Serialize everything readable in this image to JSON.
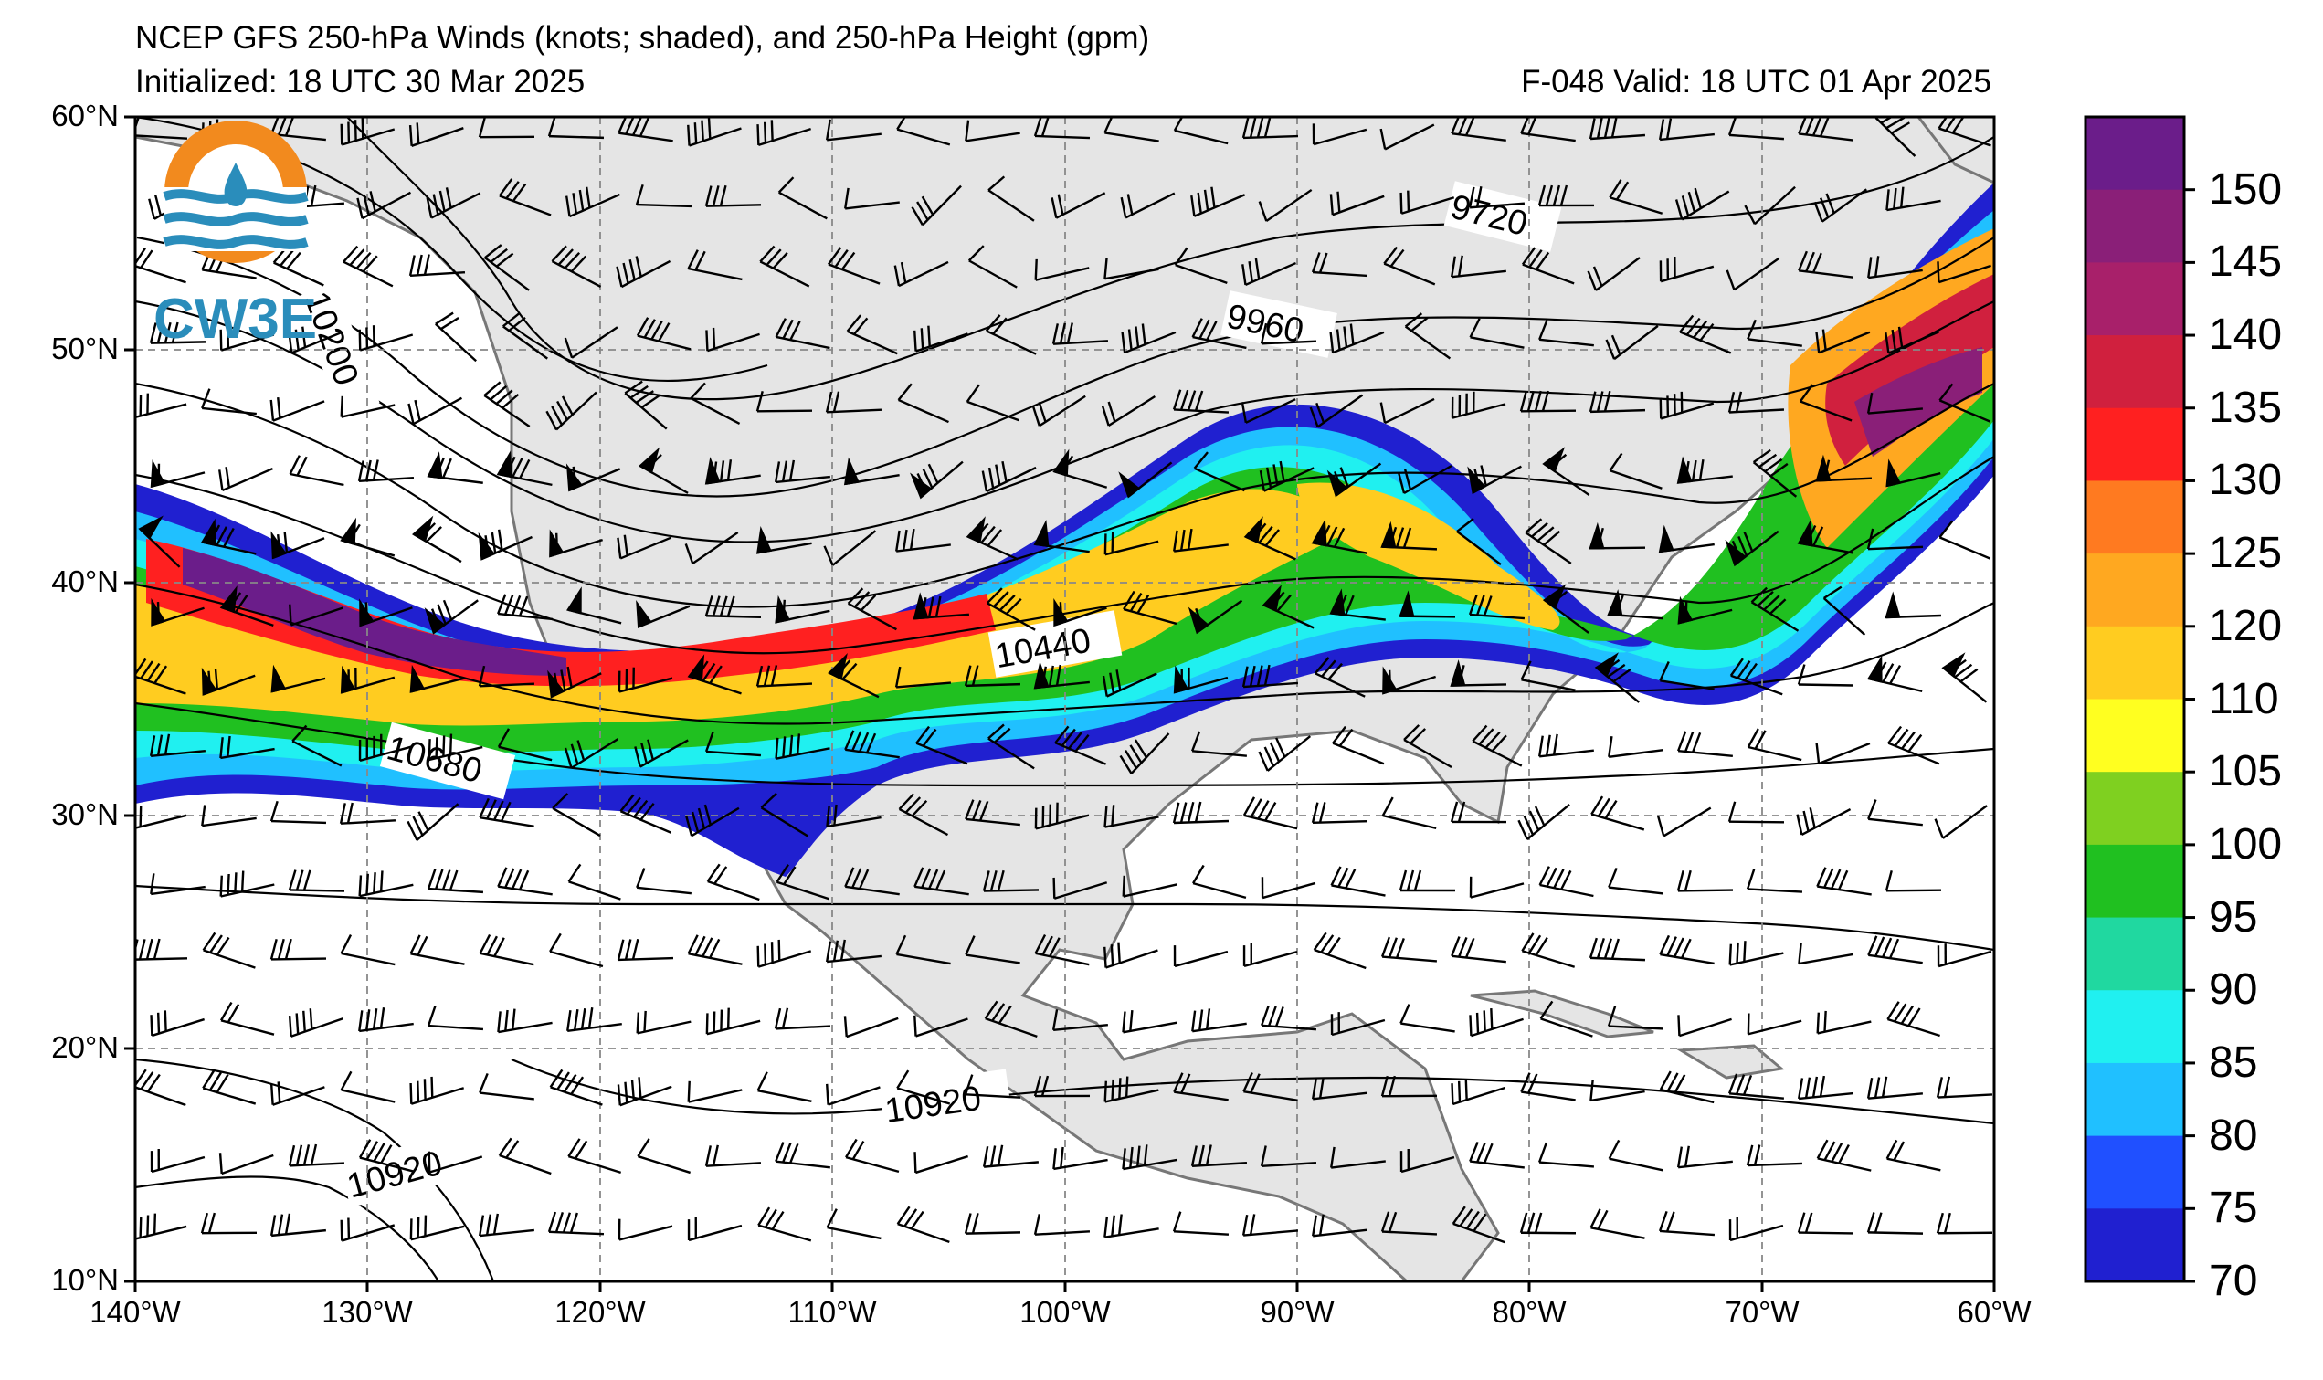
{
  "header": {
    "title": "NCEP GFS 250-hPa Winds (knots; shaded), and 250-hPa Height (gpm)",
    "initialized": "Initialized: 18 UTC 30 Mar 2025",
    "valid": "F-048  Valid: 18 UTC 01 Apr 2025"
  },
  "logo": {
    "text": "CW3E"
  },
  "axes": {
    "lat_labels": [
      "60°N",
      "50°N",
      "40°N",
      "30°N",
      "20°N",
      "10°N"
    ],
    "lon_labels": [
      "140°W",
      "130°W",
      "120°W",
      "110°W",
      "100°W",
      "90°W",
      "80°W",
      "70°W",
      "60°W"
    ]
  },
  "colorbar": {
    "labels": [
      "150",
      "145",
      "140",
      "135",
      "130",
      "125",
      "120",
      "110",
      "105",
      "100",
      "95",
      "90",
      "85",
      "80",
      "75",
      "70"
    ],
    "colors": [
      "#6b1d8a",
      "#8a1f78",
      "#a8206a",
      "#d0203e",
      "#ff2020",
      "#ff7a20",
      "#ffa820",
      "#ffcc20",
      "#ffff20",
      "#7fd020",
      "#20c020",
      "#20d8a0",
      "#20f0f0",
      "#20c0ff",
      "#2050ff",
      "#2020d0"
    ]
  },
  "contours": [
    {
      "label": "9720"
    },
    {
      "label": "9960"
    },
    {
      "label": "10200"
    },
    {
      "label": "10440"
    },
    {
      "label": "10680"
    },
    {
      "label": "10920"
    },
    {
      "label": "10920"
    }
  ]
}
